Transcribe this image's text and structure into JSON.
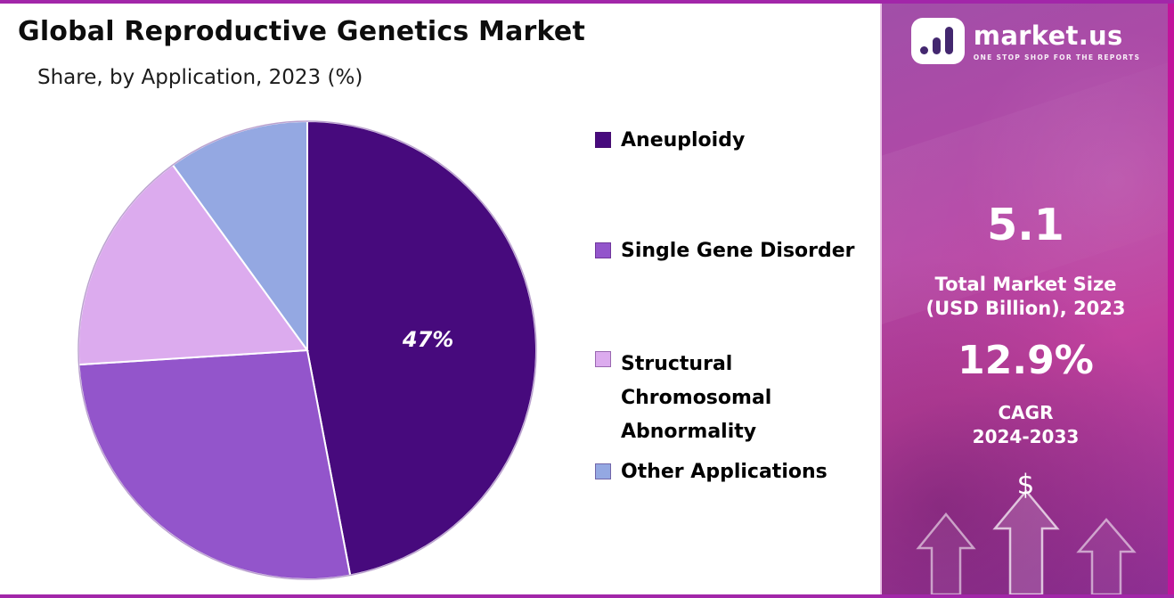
{
  "header": {
    "title": "Global Reproductive Genetics Market",
    "subtitle": "Share, by Application, 2023 (%)"
  },
  "chart_data": {
    "type": "pie",
    "title": "Global Reproductive Genetics Market",
    "subtitle": "Share, by Application, 2023 (%)",
    "unit": "%",
    "categories": [
      "Aneuploidy",
      "Single Gene Disorder",
      "Structural Chromosomal Abnormality",
      "Other Applications"
    ],
    "values": [
      47,
      27,
      16,
      10
    ],
    "colors": [
      "#470a7d",
      "#9355cb",
      "#dcabee",
      "#94a8e2"
    ],
    "data_labels": [
      "47%",
      "",
      "",
      ""
    ],
    "start_angle": "top",
    "direction": "clockwise",
    "legend_position": "right"
  },
  "sidebar": {
    "brand": "market.us",
    "tagline": "ONE STOP SHOP FOR THE REPORTS",
    "market_size": {
      "value": "5.1",
      "label_line1": "Total Market Size",
      "label_line2": "(USD Billion), 2023"
    },
    "cagr": {
      "value": "12.9%",
      "label_line1": "CAGR",
      "label_line2": "2024-2033"
    },
    "currency_symbol": "$",
    "accent_colors": {
      "panel_top": "#a14fa8",
      "panel_bottom": "#8e2f93",
      "edge_strip": "#c2139b"
    }
  }
}
